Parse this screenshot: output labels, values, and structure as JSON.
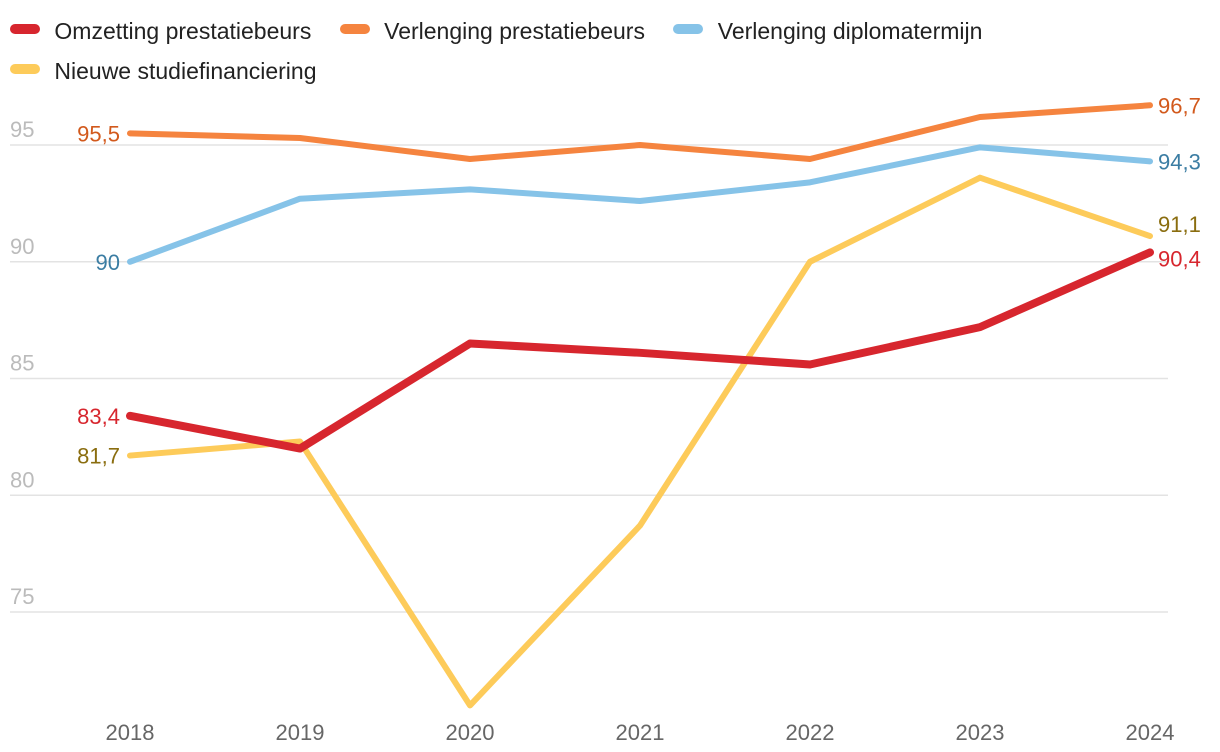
{
  "chart_data": {
    "type": "line",
    "categories": [
      "2018",
      "2019",
      "2020",
      "2021",
      "2022",
      "2023",
      "2024"
    ],
    "ylim": [
      70,
      98
    ],
    "yticks": [
      75,
      80,
      85,
      90,
      95
    ],
    "ytick_labels": [
      "75",
      "80",
      "85",
      "90",
      "95"
    ],
    "grid": true,
    "series": [
      {
        "name": "Omzetting prestatiebeurs",
        "color": "#d7262e",
        "label_color": "#d7262e",
        "values": [
          83.4,
          82.0,
          86.5,
          86.1,
          85.6,
          87.2,
          90.4
        ],
        "start_label": "83,4",
        "end_label": "90,4"
      },
      {
        "name": "Verlenging prestatiebeurs",
        "color": "#f5843f",
        "label_color": "#d2591c",
        "values": [
          95.5,
          95.3,
          94.4,
          95.0,
          94.4,
          96.2,
          96.7
        ],
        "start_label": "95,5",
        "end_label": "96,7"
      },
      {
        "name": "Verlenging diplomatermijn",
        "color": "#86c3e8",
        "label_color": "#3b7da3",
        "values": [
          90.0,
          92.7,
          93.1,
          92.6,
          93.4,
          94.9,
          94.3
        ],
        "start_label": "90",
        "end_label": "94,3"
      },
      {
        "name": "Nieuwe studiefinanciering",
        "color": "#fdcb5a",
        "label_color": "#8a6d0f",
        "values": [
          81.7,
          82.3,
          71.0,
          78.7,
          90.0,
          93.6,
          91.1
        ],
        "start_label": "81,7",
        "end_label": "91,1"
      }
    ]
  }
}
